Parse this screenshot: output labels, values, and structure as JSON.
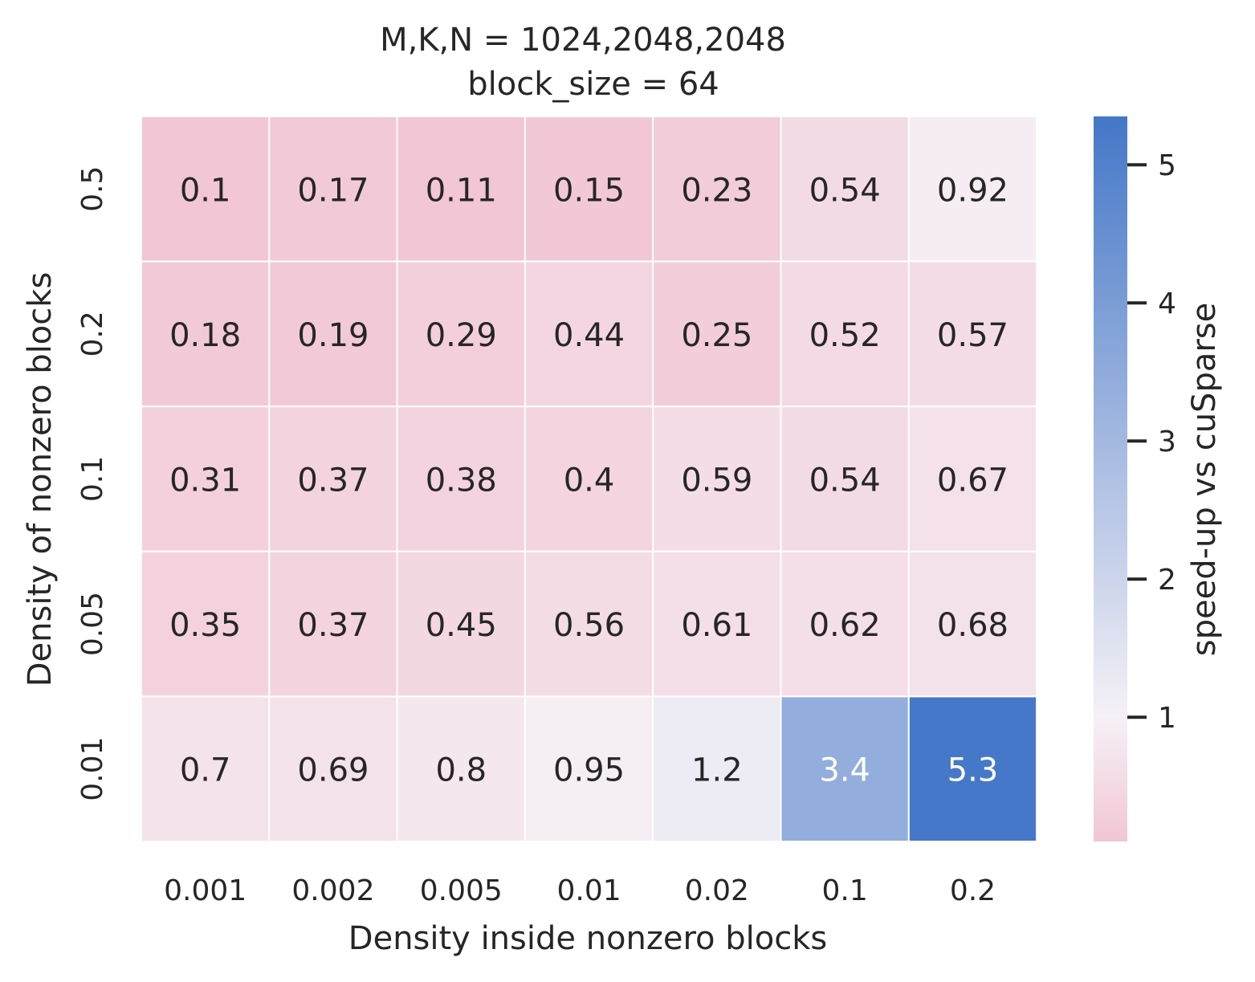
{
  "chart_data": {
    "type": "heatmap",
    "title": "M,K,N = 1024,2048,2048",
    "subtitle": "block_size = 64",
    "xlabel": "Density inside nonzero blocks",
    "ylabel": "Density of nonzero blocks",
    "x_categories": [
      "0.001",
      "0.002",
      "0.005",
      "0.01",
      "0.02",
      "0.1",
      "0.2"
    ],
    "y_categories": [
      "0.5",
      "0.2",
      "0.1",
      "0.05",
      "0.01"
    ],
    "values": [
      [
        0.1,
        0.17,
        0.11,
        0.15,
        0.23,
        0.54,
        0.92
      ],
      [
        0.18,
        0.19,
        0.29,
        0.44,
        0.25,
        0.52,
        0.57
      ],
      [
        0.31,
        0.37,
        0.38,
        0.4,
        0.59,
        0.54,
        0.67
      ],
      [
        0.35,
        0.37,
        0.45,
        0.56,
        0.61,
        0.62,
        0.68
      ],
      [
        0.7,
        0.69,
        0.8,
        0.95,
        1.2,
        3.4,
        5.3
      ]
    ],
    "annotations": [
      [
        "0.1",
        "0.17",
        "0.11",
        "0.15",
        "0.23",
        "0.54",
        "0.92"
      ],
      [
        "0.18",
        "0.19",
        "0.29",
        "0.44",
        "0.25",
        "0.52",
        "0.57"
      ],
      [
        "0.31",
        "0.37",
        "0.38",
        "0.4",
        "0.59",
        "0.54",
        "0.67"
      ],
      [
        "0.35",
        "0.37",
        "0.45",
        "0.56",
        "0.61",
        "0.62",
        "0.68"
      ],
      [
        "0.7",
        "0.69",
        "0.8",
        "0.95",
        "1.2",
        "3.4",
        "5.3"
      ]
    ],
    "colorbar": {
      "label": "speed-up vs cuSparse",
      "min": 0.1,
      "max": 5.35,
      "center": 1,
      "ticks": [
        1,
        2,
        3,
        4,
        5
      ],
      "low_color": "#f2c6d4",
      "center_color": "#f5f1f6",
      "high_color": "#4477c8"
    },
    "grid": false,
    "cell_border_color": "#ffffff"
  }
}
